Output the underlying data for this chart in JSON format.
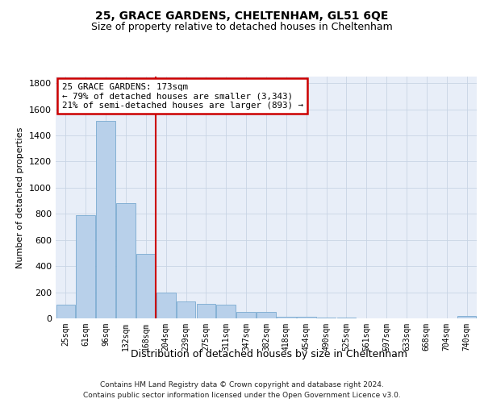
{
  "title1": "25, GRACE GARDENS, CHELTENHAM, GL51 6QE",
  "title2": "Size of property relative to detached houses in Cheltenham",
  "xlabel": "Distribution of detached houses by size in Cheltenham",
  "ylabel": "Number of detached properties",
  "footer1": "Contains HM Land Registry data © Crown copyright and database right 2024.",
  "footer2": "Contains public sector information licensed under the Open Government Licence v3.0.",
  "property_label": "25 GRACE GARDENS: 173sqm",
  "annotation_line1": "← 79% of detached houses are smaller (3,343)",
  "annotation_line2": "21% of semi-detached houses are larger (893) →",
  "bar_color": "#b8d0ea",
  "bar_edge_color": "#7aaad0",
  "vline_color": "#cc0000",
  "annotation_box_edgecolor": "#cc0000",
  "background_color": "#e8eef8",
  "grid_color": "#c8d4e4",
  "categories": [
    "25sqm",
    "61sqm",
    "96sqm",
    "132sqm",
    "168sqm",
    "204sqm",
    "239sqm",
    "275sqm",
    "311sqm",
    "347sqm",
    "382sqm",
    "418sqm",
    "454sqm",
    "490sqm",
    "525sqm",
    "561sqm",
    "597sqm",
    "633sqm",
    "668sqm",
    "704sqm",
    "740sqm"
  ],
  "values": [
    103,
    790,
    1510,
    880,
    495,
    200,
    130,
    110,
    103,
    50,
    50,
    10,
    10,
    5,
    5,
    2,
    2,
    2,
    2,
    2,
    20
  ],
  "ylim": [
    0,
    1850
  ],
  "yticks": [
    0,
    200,
    400,
    600,
    800,
    1000,
    1200,
    1400,
    1600,
    1800
  ],
  "vline_x": 4.475
}
